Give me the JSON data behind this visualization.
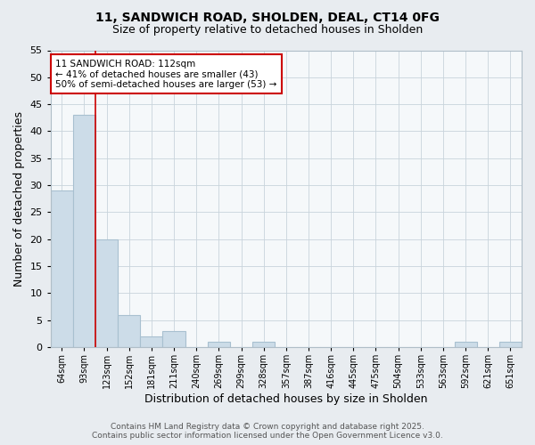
{
  "title_line1": "11, SANDWICH ROAD, SHOLDEN, DEAL, CT14 0FG",
  "title_line2": "Size of property relative to detached houses in Sholden",
  "xlabel": "Distribution of detached houses by size in Sholden",
  "ylabel": "Number of detached properties",
  "categories": [
    "64sqm",
    "93sqm",
    "123sqm",
    "152sqm",
    "181sqm",
    "211sqm",
    "240sqm",
    "269sqm",
    "299sqm",
    "328sqm",
    "357sqm",
    "387sqm",
    "416sqm",
    "445sqm",
    "475sqm",
    "504sqm",
    "533sqm",
    "563sqm",
    "592sqm",
    "621sqm",
    "651sqm"
  ],
  "values": [
    29,
    43,
    20,
    6,
    2,
    3,
    0,
    1,
    0,
    1,
    0,
    0,
    0,
    0,
    0,
    0,
    0,
    0,
    1,
    0,
    1
  ],
  "bar_color": "#ccdce8",
  "bar_edge_color": "#a8c0d0",
  "vline_x_index": 2,
  "vline_color": "#cc0000",
  "ylim": [
    0,
    55
  ],
  "yticks": [
    0,
    5,
    10,
    15,
    20,
    25,
    30,
    35,
    40,
    45,
    50,
    55
  ],
  "annotation_title": "11 SANDWICH ROAD: 112sqm",
  "annotation_line2": "← 41% of detached houses are smaller (43)",
  "annotation_line3": "50% of semi-detached houses are larger (53) →",
  "annotation_box_color": "#cc0000",
  "footer_line1": "Contains HM Land Registry data © Crown copyright and database right 2025.",
  "footer_line2": "Contains public sector information licensed under the Open Government Licence v3.0.",
  "fig_bg_color": "#e8ecf0",
  "plot_bg_color": "#f5f8fa",
  "grid_color": "#c8d4dc",
  "title1_fontsize": 10,
  "title2_fontsize": 9,
  "xlabel_fontsize": 9,
  "ylabel_fontsize": 9,
  "xtick_fontsize": 7,
  "ytick_fontsize": 8,
  "ann_fontsize": 7.5,
  "footer_fontsize": 6.5
}
